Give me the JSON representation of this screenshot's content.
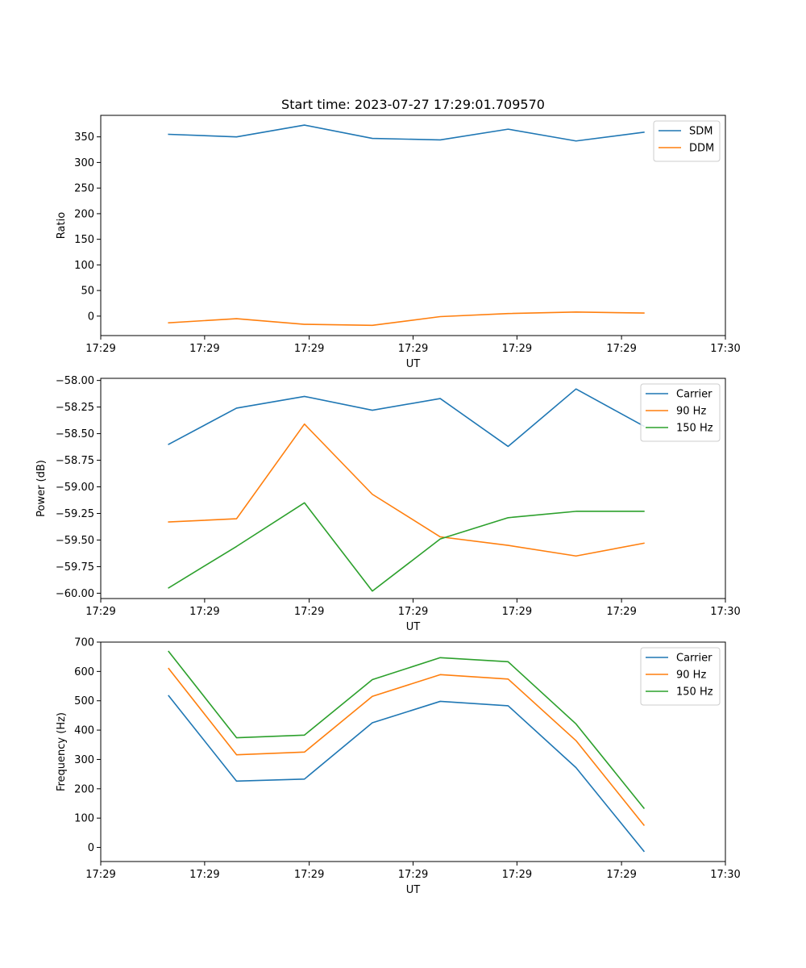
{
  "chart_data": [
    {
      "type": "line",
      "title": "Start time: 2023-07-27 17:29:01.709570",
      "xlabel": "UT",
      "ylabel": "Ratio",
      "x": [
        1,
        2,
        3,
        4,
        5,
        6,
        7,
        8
      ],
      "xlim": [
        0,
        9.2
      ],
      "x_ticks": [
        0,
        1.53,
        3.07,
        4.6,
        6.13,
        7.67,
        9.2
      ],
      "x_tick_labels": [
        "17:29",
        "17:29",
        "17:29",
        "17:29",
        "17:29",
        "17:29",
        "17:30"
      ],
      "ylim": [
        -38,
        392
      ],
      "y_ticks": [
        0,
        50,
        100,
        150,
        200,
        250,
        300,
        350
      ],
      "y_tick_labels": [
        "0",
        "50",
        "100",
        "150",
        "200",
        "250",
        "300",
        "350"
      ],
      "legend_position": "top-right",
      "series": [
        {
          "name": "SDM",
          "color": "#1f77b4",
          "values": [
            355,
            350,
            373,
            347,
            344,
            365,
            342,
            359
          ]
        },
        {
          "name": "DDM",
          "color": "#ff7f0e",
          "values": [
            -13,
            -5,
            -16,
            -18,
            -1,
            5,
            8,
            6
          ]
        }
      ]
    },
    {
      "type": "line",
      "title": "",
      "xlabel": "UT",
      "ylabel": "Power (dB)",
      "x": [
        1,
        2,
        3,
        4,
        5,
        6,
        7,
        8
      ],
      "xlim": [
        0,
        9.2
      ],
      "x_ticks": [
        0,
        1.53,
        3.07,
        4.6,
        6.13,
        7.67,
        9.2
      ],
      "x_tick_labels": [
        "17:29",
        "17:29",
        "17:29",
        "17:29",
        "17:29",
        "17:29",
        "17:30"
      ],
      "ylim": [
        -60.05,
        -57.98
      ],
      "y_ticks": [
        -60.0,
        -59.75,
        -59.5,
        -59.25,
        -59.0,
        -58.75,
        -58.5,
        -58.25,
        -58.0
      ],
      "y_tick_labels": [
        "−60.00",
        "−59.75",
        "−59.50",
        "−59.25",
        "−59.00",
        "−58.75",
        "−58.50",
        "−58.25",
        "−58.00"
      ],
      "legend_position": "top-right",
      "series": [
        {
          "name": "Carrier",
          "color": "#1f77b4",
          "values": [
            -58.6,
            -58.26,
            -58.15,
            -58.28,
            -58.17,
            -58.62,
            -58.08,
            -58.43
          ]
        },
        {
          "name": "90 Hz",
          "color": "#ff7f0e",
          "values": [
            -59.33,
            -59.3,
            -58.41,
            -59.07,
            -59.47,
            -59.55,
            -59.65,
            -59.53
          ]
        },
        {
          "name": "150 Hz",
          "color": "#2ca02c",
          "values": [
            -59.95,
            -59.56,
            -59.15,
            -59.98,
            -59.49,
            -59.29,
            -59.23,
            -59.23
          ]
        }
      ]
    },
    {
      "type": "line",
      "title": "",
      "xlabel": "UT",
      "ylabel": "Frequency (Hz)",
      "x": [
        1,
        2,
        3,
        4,
        5,
        6,
        7,
        8
      ],
      "xlim": [
        0,
        9.2
      ],
      "x_ticks": [
        0,
        1.53,
        3.07,
        4.6,
        6.13,
        7.67,
        9.2
      ],
      "x_tick_labels": [
        "17:29",
        "17:29",
        "17:29",
        "17:29",
        "17:29",
        "17:29",
        "17:30"
      ],
      "ylim": [
        -48,
        700
      ],
      "y_ticks": [
        0,
        100,
        200,
        300,
        400,
        500,
        600,
        700
      ],
      "y_tick_labels": [
        "0",
        "100",
        "200",
        "300",
        "400",
        "500",
        "600",
        "700"
      ],
      "legend_position": "top-right",
      "series": [
        {
          "name": "Carrier",
          "color": "#1f77b4",
          "values": [
            517,
            226,
            233,
            425,
            498,
            483,
            272,
            -13
          ]
        },
        {
          "name": "90 Hz",
          "color": "#ff7f0e",
          "values": [
            610,
            316,
            325,
            515,
            589,
            574,
            364,
            76
          ]
        },
        {
          "name": "150 Hz",
          "color": "#2ca02c",
          "values": [
            668,
            374,
            383,
            572,
            647,
            633,
            421,
            134
          ]
        }
      ]
    }
  ]
}
